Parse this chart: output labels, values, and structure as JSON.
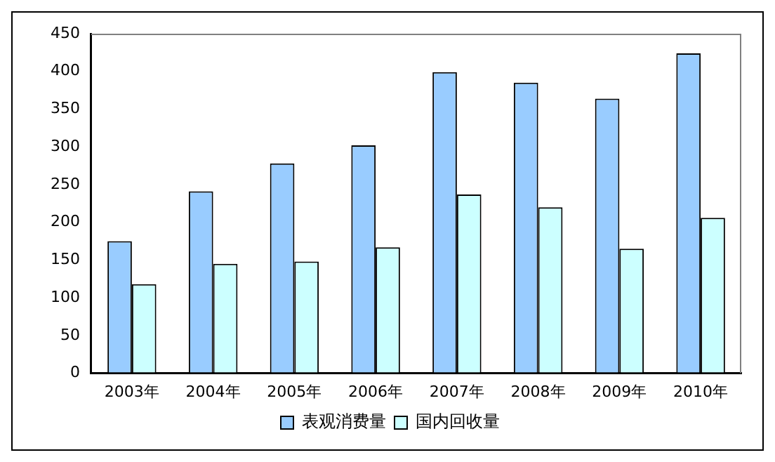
{
  "chart_data": {
    "type": "bar",
    "categories": [
      "2003年",
      "2004年",
      "2005年",
      "2006年",
      "2007年",
      "2008年",
      "2009年",
      "2010年"
    ],
    "series": [
      {
        "name": "表观消费量",
        "color": "#99ccff",
        "values": [
          175,
          241,
          278,
          302,
          399,
          385,
          364,
          424
        ]
      },
      {
        "name": "国内回收量",
        "color": "#ccffff",
        "values": [
          118,
          145,
          148,
          167,
          237,
          220,
          165,
          206
        ]
      }
    ],
    "ylim": [
      0,
      450
    ],
    "yticks": [
      0,
      50,
      100,
      150,
      200,
      250,
      300,
      350,
      400,
      450
    ],
    "grid": false,
    "legend": "bottom"
  }
}
